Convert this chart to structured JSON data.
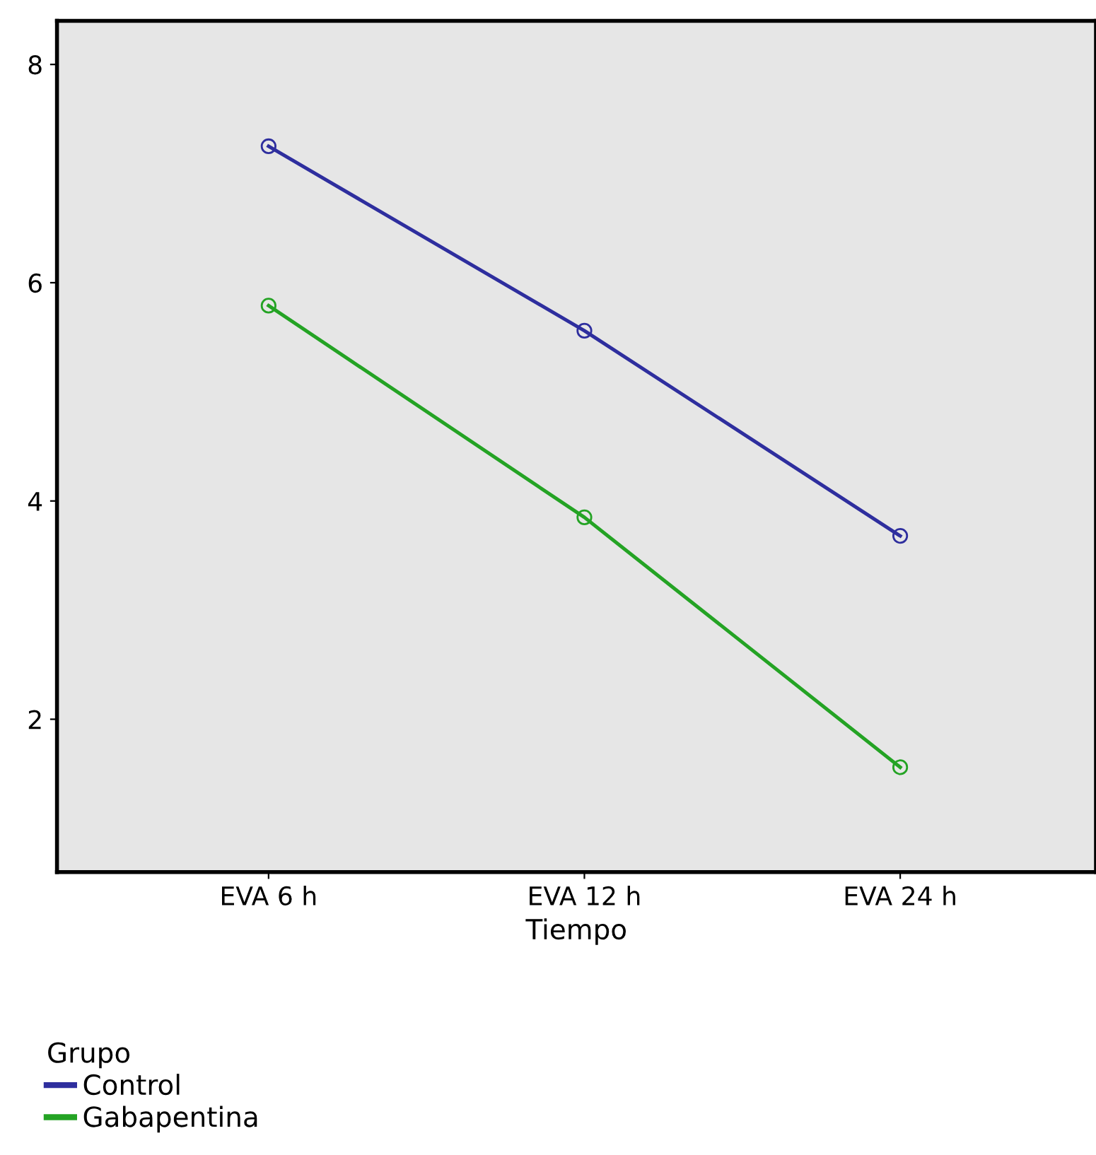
{
  "chart_data": {
    "type": "line",
    "xlabel": "Tiempo",
    "legend_title": "Grupo",
    "categories": [
      "EVA 6 h",
      "EVA 12 h",
      "EVA 24 h"
    ],
    "series": [
      {
        "name": "Control",
        "color": "#2e2e9e",
        "values": [
          7.25,
          5.56,
          3.68
        ]
      },
      {
        "name": "Gabapentina",
        "color": "#24a324",
        "values": [
          5.79,
          3.85,
          1.56
        ]
      }
    ],
    "ylim": [
      0.6,
      8.4
    ],
    "yticks": [
      2,
      4,
      6,
      8
    ],
    "marker": "circle",
    "line_style": "solid",
    "grid": false,
    "legend": "bottom left"
  }
}
